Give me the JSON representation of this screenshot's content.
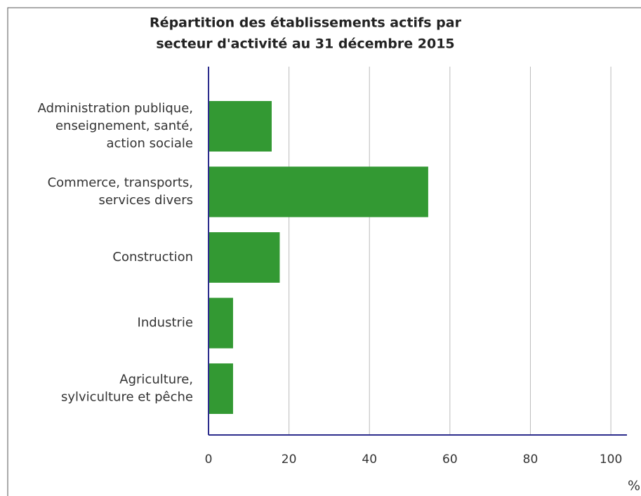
{
  "chart_data": {
    "type": "bar",
    "orientation": "horizontal",
    "title": [
      "Répartition des établissements actifs par",
      "secteur d'activité au 31 décembre 2015"
    ],
    "categories": [
      [
        "Administration publique,",
        "enseignement, santé,",
        "action sociale"
      ],
      [
        "Commerce, transports,",
        "services divers"
      ],
      [
        "Construction"
      ],
      [
        "Industrie"
      ],
      [
        "Agriculture,",
        "sylviculture et pêche"
      ]
    ],
    "values": [
      15.7,
      54.6,
      17.7,
      6.1,
      6.1
    ],
    "color": "#339933",
    "xlabel": "%",
    "xlim": [
      0,
      104
    ],
    "xticks": [
      0,
      20,
      40,
      60,
      80,
      100
    ],
    "grid": true
  }
}
